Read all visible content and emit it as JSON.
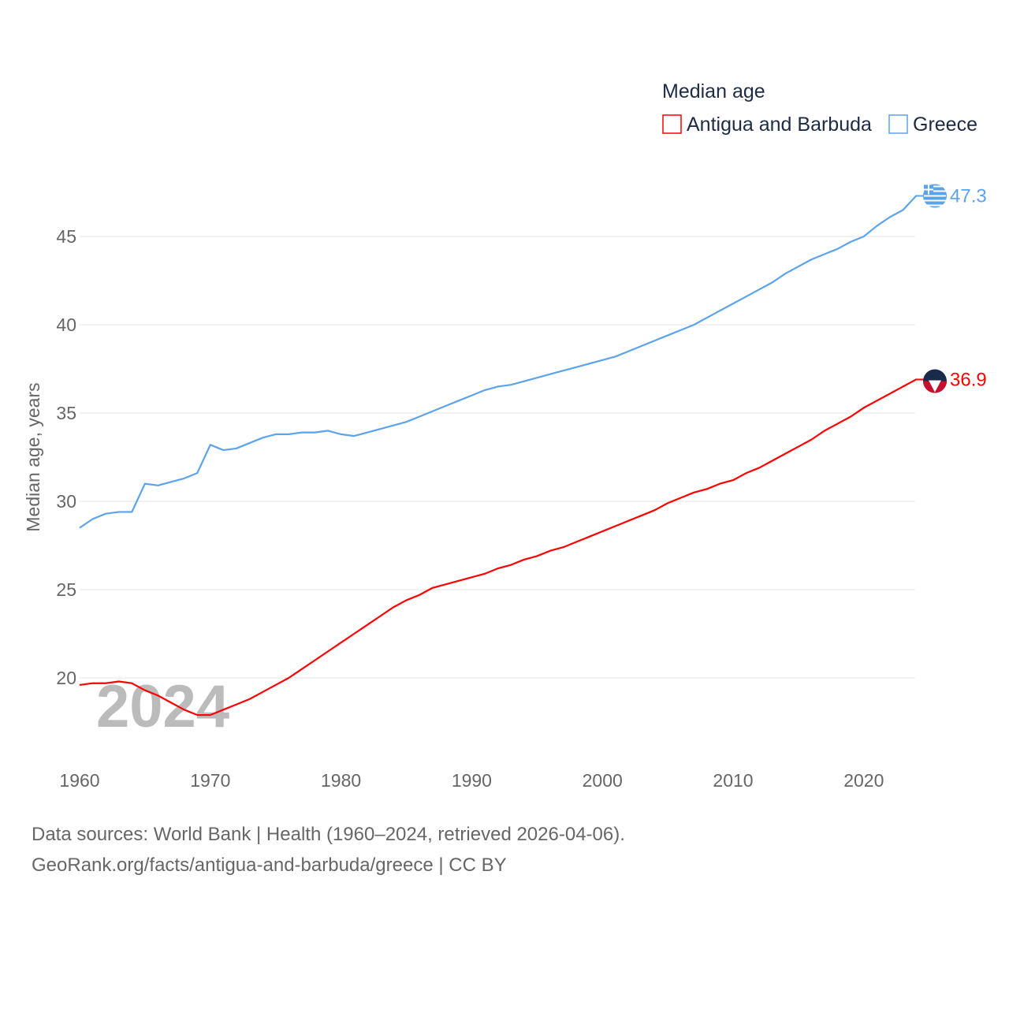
{
  "chart_data": {
    "type": "line",
    "title": "Median age",
    "xlabel": "",
    "ylabel": "Median age, years",
    "xlim": [
      1960,
      2024
    ],
    "ylim": [
      16,
      48
    ],
    "yticks": [
      20,
      25,
      30,
      35,
      40,
      45
    ],
    "xticks": [
      1960,
      1970,
      1980,
      1990,
      2000,
      2010,
      2020
    ],
    "grid": true,
    "legend_position": "top-right",
    "year_watermark": "2024",
    "x": [
      1960,
      1961,
      1962,
      1963,
      1964,
      1965,
      1966,
      1967,
      1968,
      1969,
      1970,
      1971,
      1972,
      1973,
      1974,
      1975,
      1976,
      1977,
      1978,
      1979,
      1980,
      1981,
      1982,
      1983,
      1984,
      1985,
      1986,
      1987,
      1988,
      1989,
      1990,
      1991,
      1992,
      1993,
      1994,
      1995,
      1996,
      1997,
      1998,
      1999,
      2000,
      2001,
      2002,
      2003,
      2004,
      2005,
      2006,
      2007,
      2008,
      2009,
      2010,
      2011,
      2012,
      2013,
      2014,
      2015,
      2016,
      2017,
      2018,
      2019,
      2020,
      2021,
      2022,
      2023,
      2024
    ],
    "series": [
      {
        "name": "Antigua and Barbuda",
        "color": "#ff0000",
        "end_label": "36.9",
        "values": [
          19.6,
          19.7,
          19.7,
          19.8,
          19.7,
          19.3,
          19.0,
          18.6,
          18.2,
          17.9,
          17.9,
          18.2,
          18.5,
          18.8,
          19.2,
          19.6,
          20.0,
          20.5,
          21.0,
          21.5,
          22.0,
          22.5,
          23.0,
          23.5,
          24.0,
          24.4,
          24.7,
          25.1,
          25.3,
          25.5,
          25.7,
          25.9,
          26.2,
          26.4,
          26.7,
          26.9,
          27.2,
          27.4,
          27.7,
          28.0,
          28.3,
          28.6,
          28.9,
          29.2,
          29.5,
          29.9,
          30.2,
          30.5,
          30.7,
          31.0,
          31.2,
          31.6,
          31.9,
          32.3,
          32.7,
          33.1,
          33.5,
          34.0,
          34.4,
          34.8,
          35.3,
          35.7,
          36.1,
          36.5,
          36.9
        ]
      },
      {
        "name": "Greece",
        "color": "#5ba3ea",
        "end_label": "47.3",
        "values": [
          28.5,
          29.0,
          29.3,
          29.4,
          29.4,
          31.0,
          30.9,
          31.1,
          31.3,
          31.6,
          33.2,
          32.9,
          33.0,
          33.3,
          33.6,
          33.8,
          33.8,
          33.9,
          33.9,
          34.0,
          33.8,
          33.7,
          33.9,
          34.1,
          34.3,
          34.5,
          34.8,
          35.1,
          35.4,
          35.7,
          36.0,
          36.3,
          36.5,
          36.6,
          36.8,
          37.0,
          37.2,
          37.4,
          37.6,
          37.8,
          38.0,
          38.2,
          38.5,
          38.8,
          39.1,
          39.4,
          39.7,
          40.0,
          40.4,
          40.8,
          41.2,
          41.6,
          42.0,
          42.4,
          42.9,
          43.3,
          43.7,
          44.0,
          44.3,
          44.7,
          45.0,
          45.6,
          46.1,
          46.5,
          47.3
        ]
      }
    ]
  },
  "footer": {
    "line1": "Data sources: World Bank | Health (1960–2024, retrieved 2026-04-06).",
    "line2": "GeoRank.org/facts/antigua-and-barbuda/greece | CC BY"
  }
}
